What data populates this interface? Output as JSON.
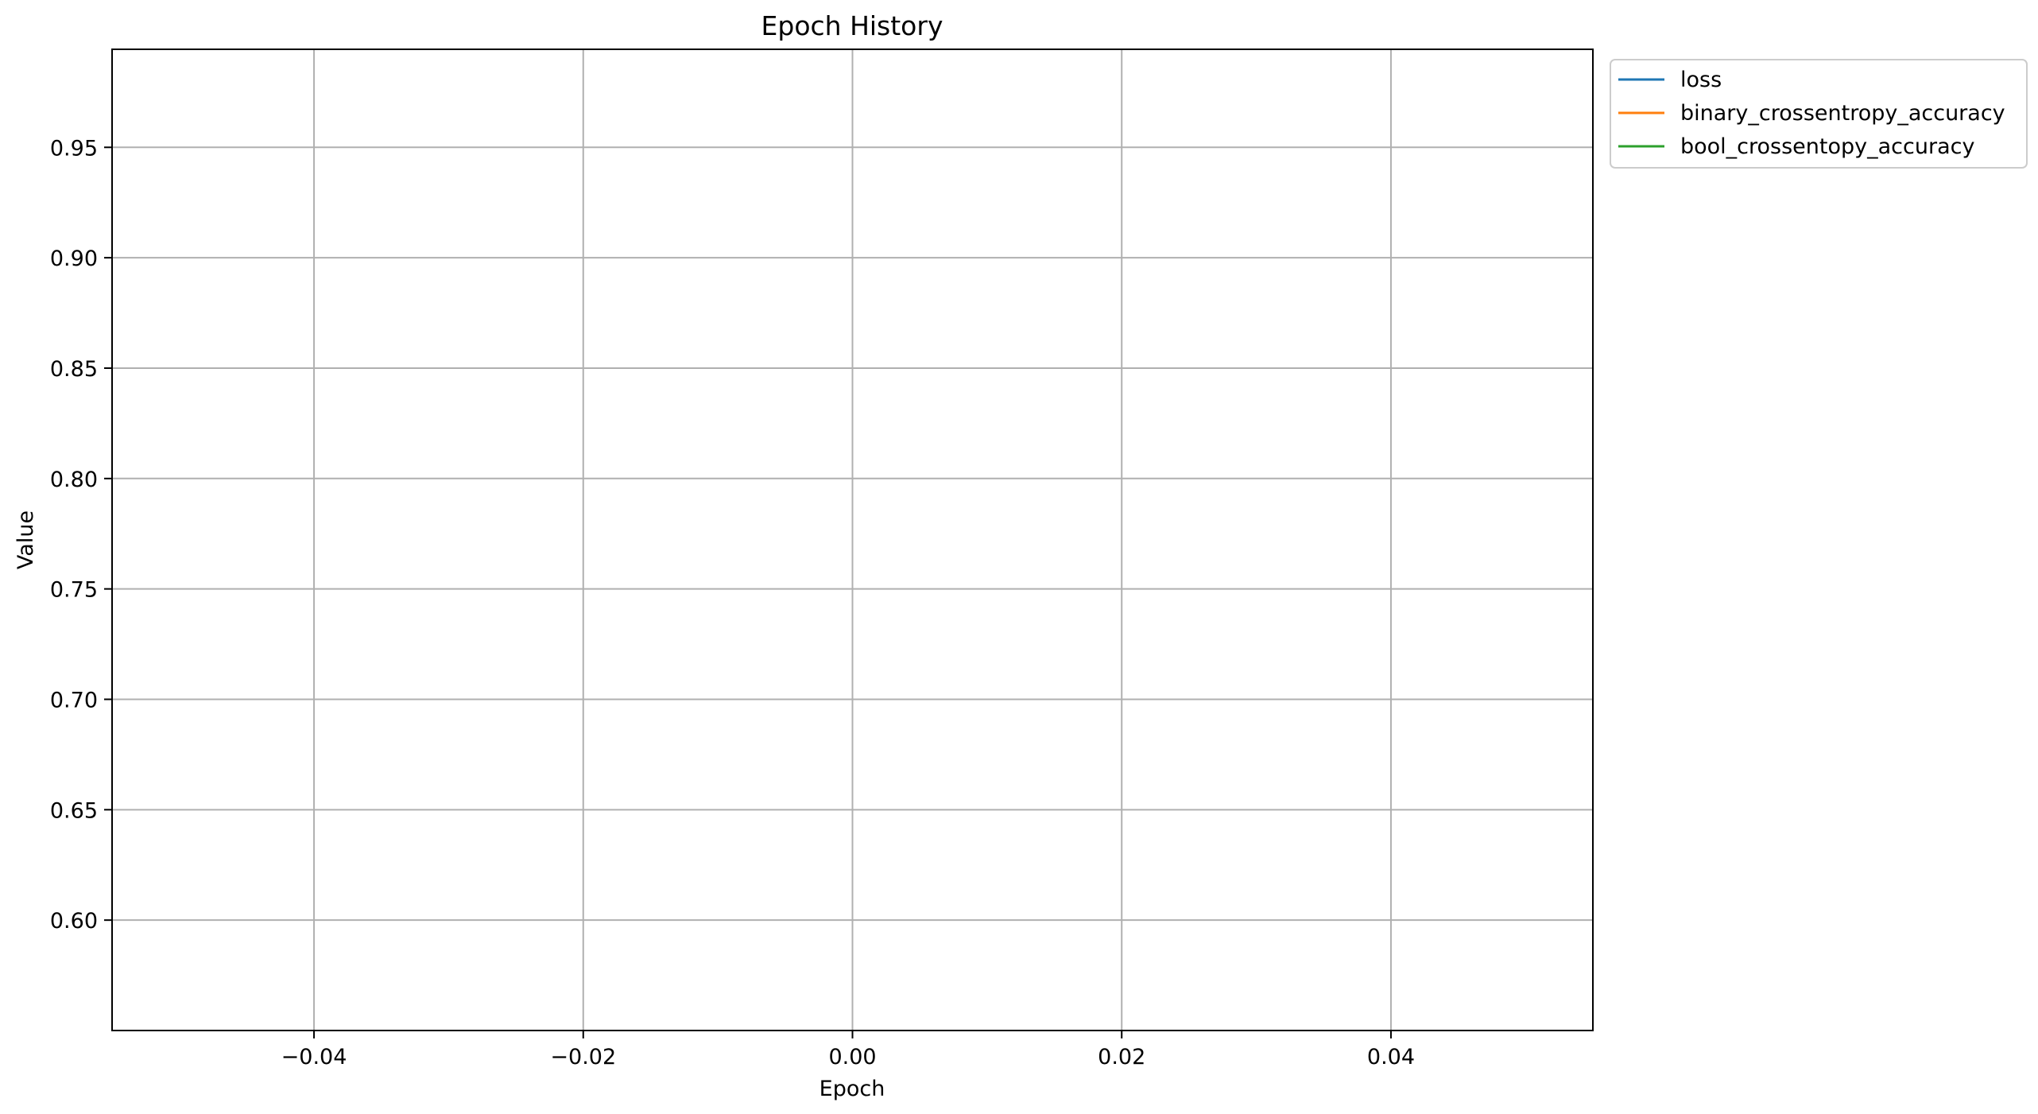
{
  "chart_data": {
    "type": "line",
    "title": "Epoch History",
    "xlabel": "Epoch",
    "ylabel": "Value",
    "xlim": [
      -0.055,
      0.055
    ],
    "ylim": [
      0.55,
      0.9944
    ],
    "xticks": [
      -0.04,
      -0.02,
      0.0,
      0.02,
      0.04
    ],
    "xtick_labels": [
      "−0.04",
      "−0.02",
      "0.00",
      "0.02",
      "0.04"
    ],
    "yticks": [
      0.6,
      0.65,
      0.7,
      0.75,
      0.8,
      0.85,
      0.9,
      0.95
    ],
    "ytick_labels": [
      "0.60",
      "0.65",
      "0.70",
      "0.75",
      "0.80",
      "0.85",
      "0.90",
      "0.95"
    ],
    "grid": true,
    "legend_position": "outside-top-right",
    "series": [
      {
        "name": "loss",
        "color": "#1f77b4",
        "x": [],
        "y": []
      },
      {
        "name": "binary_crossentropy_accuracy",
        "color": "#ff7f0e",
        "x": [],
        "y": []
      },
      {
        "name": "bool_crossentopy_accuracy",
        "color": "#2ca02c",
        "x": [],
        "y": []
      }
    ]
  }
}
